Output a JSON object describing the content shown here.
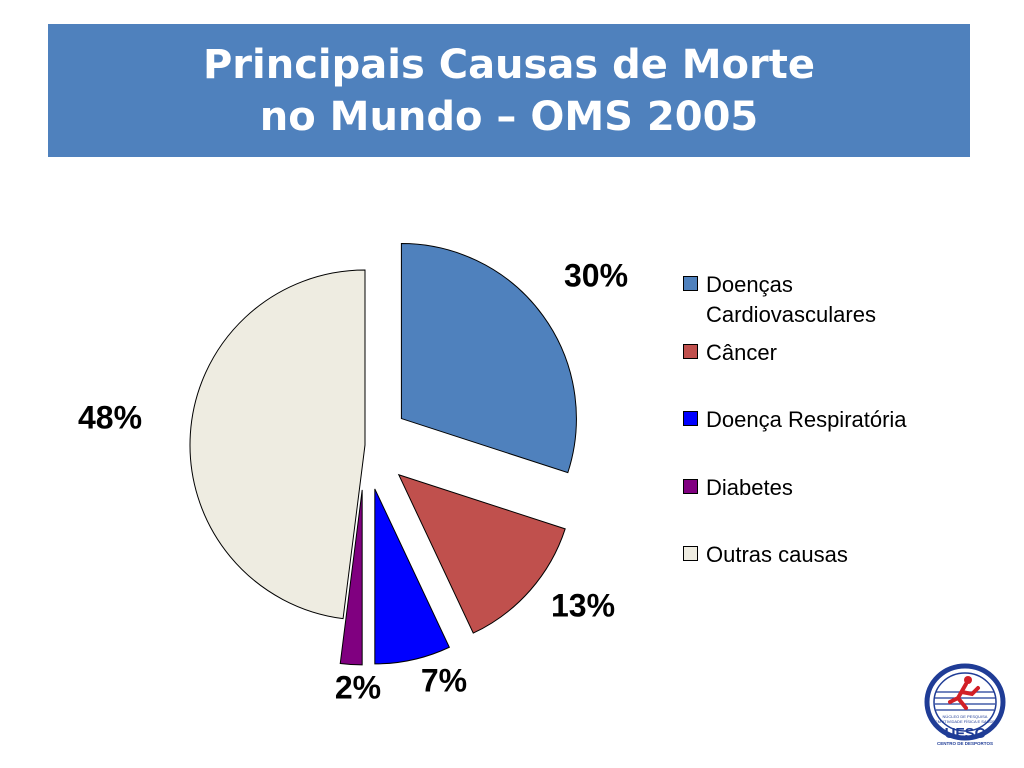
{
  "title": {
    "line1": "Principais Causas de Morte",
    "line2": "no Mundo – OMS 2005"
  },
  "chart_data": {
    "type": "pie",
    "slices": [
      {
        "label": "Doenças Cardiovasculares",
        "value": 30,
        "display": "30%",
        "color": "#4f81bd"
      },
      {
        "label": "Câncer",
        "value": 13,
        "display": "13%",
        "color": "#c0504d"
      },
      {
        "label": "Doença Respiratória",
        "value": 7,
        "display": "7%",
        "color": "#0000ff"
      },
      {
        "label": "Diabetes",
        "value": 2,
        "display": "2%",
        "color": "#800080"
      },
      {
        "label": "Outras causas",
        "value": 48,
        "display": "48%",
        "color": "#eeece1"
      }
    ],
    "legend_position": "right"
  },
  "logo": {
    "text_main": "UFSC",
    "text_sub": "CENTRO DE DESPORTOS",
    "text_band": "NÚCLEO DE PESQUISA EM ATIVIDADE FÍSICA E SAÚDE",
    "colors": {
      "blue": "#1f3c96",
      "red": "#d21f26"
    }
  }
}
